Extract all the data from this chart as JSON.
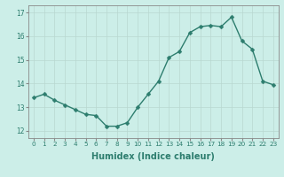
{
  "x": [
    0,
    1,
    2,
    3,
    4,
    5,
    6,
    7,
    8,
    9,
    10,
    11,
    12,
    13,
    14,
    15,
    16,
    17,
    18,
    19,
    20,
    21,
    22,
    23
  ],
  "y": [
    13.4,
    13.55,
    13.3,
    13.1,
    12.9,
    12.7,
    12.65,
    12.2,
    12.2,
    12.35,
    13.0,
    13.55,
    14.1,
    15.1,
    15.35,
    16.15,
    16.4,
    16.45,
    16.4,
    16.8,
    15.8,
    15.45,
    14.1,
    13.95
  ],
  "xlabel": "Humidex (Indice chaleur)",
  "xlim": [
    -0.5,
    23.5
  ],
  "ylim": [
    11.7,
    17.3
  ],
  "yticks": [
    12,
    13,
    14,
    15,
    16,
    17
  ],
  "xticks": [
    0,
    1,
    2,
    3,
    4,
    5,
    6,
    7,
    8,
    9,
    10,
    11,
    12,
    13,
    14,
    15,
    16,
    17,
    18,
    19,
    20,
    21,
    22,
    23
  ],
  "line_color": "#2d7d6e",
  "bg_color": "#cceee8",
  "grid_color": "#b8d8d0",
  "tick_color": "#2d7d6e",
  "marker_size": 2.5,
  "line_width": 1.0,
  "xlabel_fontsize": 7,
  "tick_fontsize": 5.2
}
